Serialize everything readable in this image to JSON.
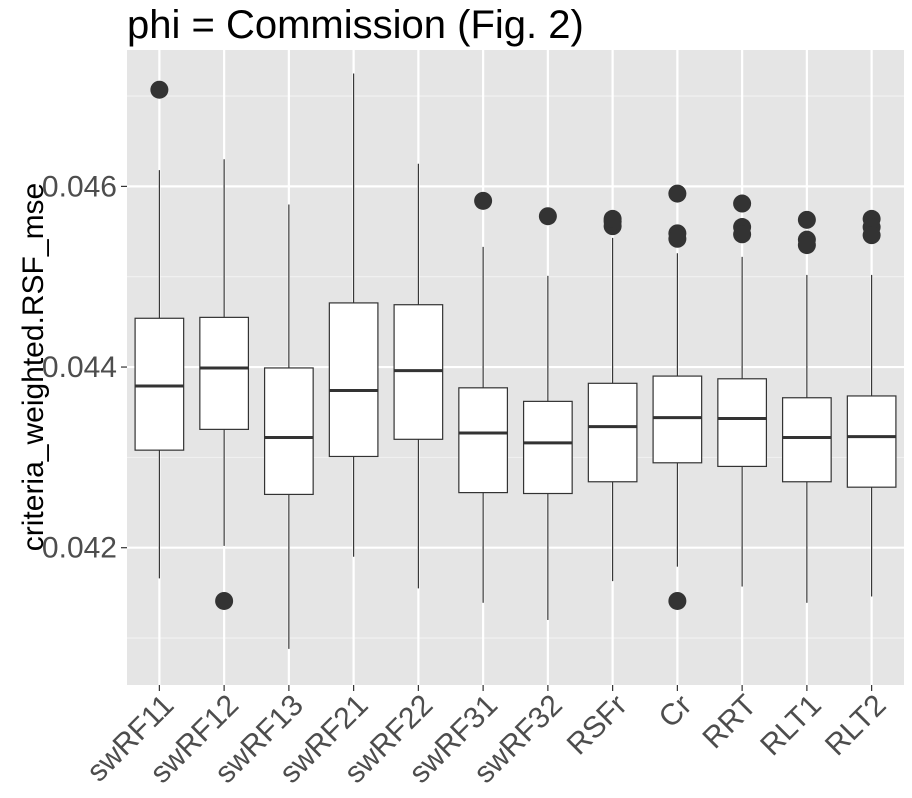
{
  "chart_data": {
    "type": "boxplot",
    "title": "phi = Commission (Fig. 2)",
    "xlabel": "",
    "ylabel": "criteria_weighted.RSF_mse",
    "ylim": [
      0.04048,
      0.04751
    ],
    "y_ticks": [
      "0.042",
      "0.044",
      "0.046"
    ],
    "y_tick_values": [
      0.042,
      0.044,
      0.046
    ],
    "y_minor_ticks": [
      0.041,
      0.043,
      0.045,
      0.047
    ],
    "grid": true,
    "panel_color": "#e5e5e5",
    "box_fill": "#ffffff",
    "categories": [
      "swRF11",
      "swRF12",
      "swRF13",
      "swRF21",
      "swRF22",
      "swRF31",
      "swRF32",
      "RSFr",
      "Cr",
      "RRT",
      "RLT1",
      "RLT2"
    ],
    "boxes": [
      {
        "name": "swRF11",
        "whisker_low": 0.04166,
        "q1": 0.04308,
        "median": 0.04379,
        "q3": 0.04454,
        "whisker_high": 0.04618,
        "outliers": [
          0.04707
        ]
      },
      {
        "name": "swRF12",
        "whisker_low": 0.04202,
        "q1": 0.04331,
        "median": 0.04399,
        "q3": 0.04455,
        "whisker_high": 0.0463,
        "outliers": [
          0.04141
        ]
      },
      {
        "name": "swRF13",
        "whisker_low": 0.04088,
        "q1": 0.04259,
        "median": 0.04322,
        "q3": 0.04399,
        "whisker_high": 0.0458,
        "outliers": []
      },
      {
        "name": "swRF21",
        "whisker_low": 0.0419,
        "q1": 0.04301,
        "median": 0.04374,
        "q3": 0.04471,
        "whisker_high": 0.04725,
        "outliers": []
      },
      {
        "name": "swRF22",
        "whisker_low": 0.04155,
        "q1": 0.0432,
        "median": 0.04396,
        "q3": 0.04469,
        "whisker_high": 0.04625,
        "outliers": []
      },
      {
        "name": "swRF31",
        "whisker_low": 0.04139,
        "q1": 0.04261,
        "median": 0.04327,
        "q3": 0.04377,
        "whisker_high": 0.04533,
        "outliers": [
          0.04584
        ]
      },
      {
        "name": "swRF32",
        "whisker_low": 0.0412,
        "q1": 0.0426,
        "median": 0.04316,
        "q3": 0.04362,
        "whisker_high": 0.04501,
        "outliers": [
          0.04567
        ]
      },
      {
        "name": "RSFr",
        "whisker_low": 0.04163,
        "q1": 0.04273,
        "median": 0.04334,
        "q3": 0.04382,
        "whisker_high": 0.04543,
        "outliers": [
          0.04556,
          0.04561,
          0.04564
        ]
      },
      {
        "name": "Cr",
        "whisker_low": 0.04179,
        "q1": 0.04294,
        "median": 0.04344,
        "q3": 0.0439,
        "whisker_high": 0.04526,
        "outliers": [
          0.04592,
          0.04548,
          0.04542,
          0.04141
        ]
      },
      {
        "name": "RRT",
        "whisker_low": 0.04157,
        "q1": 0.0429,
        "median": 0.04343,
        "q3": 0.04387,
        "whisker_high": 0.04522,
        "outliers": [
          0.04581,
          0.04555,
          0.04547
        ]
      },
      {
        "name": "RLT1",
        "whisker_low": 0.04139,
        "q1": 0.04273,
        "median": 0.04322,
        "q3": 0.04366,
        "whisker_high": 0.04502,
        "outliers": [
          0.04563,
          0.04541,
          0.04535
        ]
      },
      {
        "name": "RLT2",
        "whisker_low": 0.04146,
        "q1": 0.04267,
        "median": 0.04323,
        "q3": 0.04368,
        "whisker_high": 0.04502,
        "outliers": [
          0.04564,
          0.04555,
          0.04546
        ]
      }
    ]
  }
}
